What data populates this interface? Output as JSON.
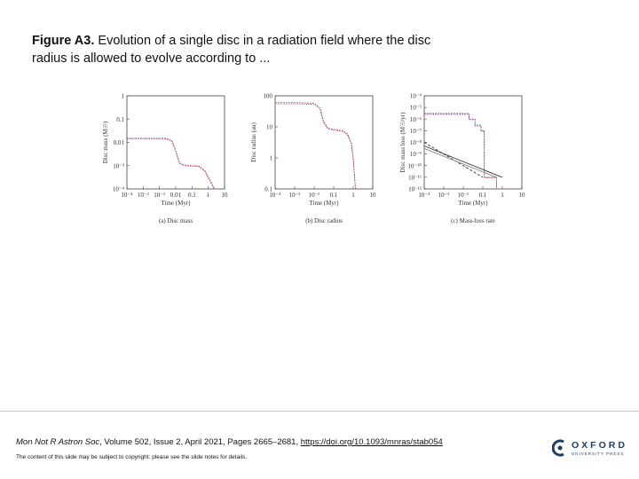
{
  "title": {
    "bold": "Figure A3.",
    "text": " Evolution of a single disc in a radiation field where the disc radius is allowed to evolve according to ..."
  },
  "chart_data": [
    {
      "type": "line",
      "caption": "(a) Disc mass",
      "xlabel": "Time (Myr)",
      "ylabel": "Disc mass (M☉)",
      "xscale": "log",
      "yscale": "log",
      "xlim": [
        0.0001,
        10
      ],
      "ylim": [
        0.0001,
        1
      ],
      "xticks": [
        "10⁻⁴",
        "10⁻³",
        "10⁻²",
        "0.01",
        "0.1",
        "1",
        "10"
      ],
      "yticks": [
        "1",
        "0.1",
        "0.01",
        "10⁻³",
        "10⁻⁴"
      ],
      "series": [
        {
          "color": "#d24b4b",
          "x": [
            0.0001,
            0.001,
            0.01,
            0.02,
            0.03,
            0.05,
            0.08,
            0.15,
            0.3,
            0.5,
            1,
            2,
            3
          ],
          "y": [
            0.015,
            0.015,
            0.0148,
            0.012,
            0.005,
            0.0013,
            0.0011,
            0.001,
            0.001,
            0.00095,
            0.0006,
            0.0002,
            0.0001
          ]
        },
        {
          "color": "#5a5ad0",
          "x": [
            0.0001,
            0.001,
            0.01,
            0.02,
            0.03,
            0.05,
            0.08,
            0.15,
            0.3,
            0.5,
            1,
            2,
            3
          ],
          "y": [
            0.014,
            0.014,
            0.0138,
            0.011,
            0.0045,
            0.0012,
            0.001,
            0.00095,
            0.00095,
            0.0009,
            0.00055,
            0.00018,
            0.0001
          ]
        }
      ]
    },
    {
      "type": "line",
      "caption": "(b) Disc radius",
      "xlabel": "Time (Myr)",
      "ylabel": "Disc radius (au)",
      "xscale": "log",
      "yscale": "log",
      "xlim": [
        0.0001,
        10
      ],
      "ylim": [
        0.1,
        100
      ],
      "xticks": [
        "10⁻⁴",
        "10⁻³",
        "10⁻²",
        "0.1",
        "1",
        "10"
      ],
      "yticks": [
        "100",
        "10",
        "1",
        "0.1"
      ],
      "series": [
        {
          "color": "#d24b4b",
          "x": [
            0.0001,
            0.001,
            0.01,
            0.02,
            0.03,
            0.05,
            0.08,
            0.15,
            0.3,
            0.5,
            0.8,
            1,
            1.3
          ],
          "y": [
            60,
            60,
            58,
            40,
            15,
            9,
            8.5,
            8,
            7.5,
            6,
            3,
            1,
            0.1
          ]
        },
        {
          "color": "#5a5ad0",
          "x": [
            0.0001,
            0.001,
            0.01,
            0.02,
            0.03,
            0.05,
            0.08,
            0.15,
            0.3,
            0.5,
            0.8,
            1,
            1.3
          ],
          "y": [
            55,
            55,
            53,
            36,
            14,
            8.5,
            8,
            7.5,
            7,
            5.5,
            2.8,
            0.9,
            0.1
          ]
        }
      ]
    },
    {
      "type": "line",
      "caption": "(c) Mass-loss rate",
      "xlabel": "Time (Myr)",
      "ylabel": "Disc mass loss (M☉/yr)",
      "xscale": "log",
      "yscale": "log",
      "xlim": [
        0.0001,
        10
      ],
      "ylim": [
        1e-12,
        0.0001
      ],
      "xticks": [
        "10⁻⁴",
        "10⁻³",
        "10⁻²",
        "0.1",
        "1",
        "10"
      ],
      "yticks": [
        "10⁻⁴",
        "10⁻⁵",
        "10⁻⁶",
        "10⁻⁷",
        "10⁻⁸",
        "10⁻⁹",
        "10⁻¹⁰",
        "10⁻¹¹",
        "10⁻¹²"
      ],
      "series": [
        {
          "color": "#5a5ad0",
          "x": [
            0.0001,
            0.02,
            0.02,
            0.04,
            0.04,
            0.08,
            0.08,
            0.12,
            0.12,
            0.5,
            0.5,
            2
          ],
          "y": [
            3e-06,
            3e-06,
            1e-06,
            1e-06,
            3e-07,
            3e-07,
            1e-07,
            1e-07,
            1e-11,
            1e-11,
            1e-12,
            1e-12
          ]
        },
        {
          "color": "#d24b4b",
          "x": [
            0.0001,
            0.02,
            0.02,
            0.04,
            0.04,
            0.08,
            0.08,
            0.12,
            0.12,
            0.5,
            0.5,
            2
          ],
          "y": [
            2.5e-06,
            2.5e-06,
            9e-07,
            9e-07,
            2.5e-07,
            2.5e-07,
            9e-08,
            9e-08,
            9e-12,
            9e-12,
            1e-12,
            1e-12
          ]
        },
        {
          "color": "#333333",
          "dash": "3,2",
          "x": [
            0.0001,
            0.1
          ],
          "y": [
            1e-08,
            1e-11
          ]
        },
        {
          "color": "#888888",
          "x": [
            0.0001,
            0.5
          ],
          "y": [
            3e-09,
            1e-11
          ]
        },
        {
          "color": "#333333",
          "x": [
            0.0001,
            1
          ],
          "y": [
            5e-09,
            1e-11
          ]
        }
      ]
    }
  ],
  "footer": {
    "journal": "Mon Not R Astron Soc",
    "citation": ", Volume 502, Issue 2, April 2021, Pages 2665–2681, ",
    "doi": "https://doi.org/10.1093/mnras/stab054",
    "copyright": "The content of this slide may be subject to copyright: please see the slide notes for details."
  },
  "logo": {
    "name": "OXFORD",
    "sub": "UNIVERSITY PRESS",
    "color": "#1f3d66"
  }
}
